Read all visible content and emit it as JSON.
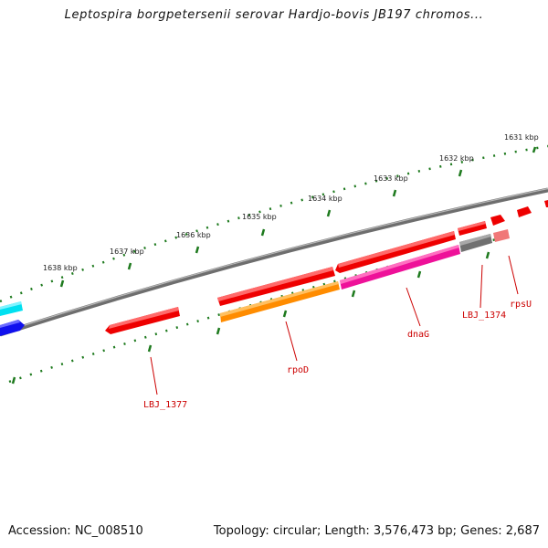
{
  "title": "Leptospira borgpetersenii serovar Hardjo-bovis JB197 chromos...",
  "footer": {
    "accession": "Accession: NC_008510",
    "summary": "Topology: circular; Length: 3,576,473 bp; Genes: 2,687"
  },
  "scale_labels": [
    "1631 kbp",
    "1632 kbp",
    "1633 kbp",
    "1634 kbp",
    "1635 kbp",
    "1636 kbp",
    "1637 kbp",
    "1638 kbp"
  ],
  "gene_labels": [
    "rpsU",
    "LBJ_1374",
    "dnaG",
    "rpoD",
    "LBJ_1377"
  ],
  "colors": {
    "backbone": "#808080",
    "tick": "#1e7a1e",
    "label": "#cc0000",
    "gene_red": "#ee0000",
    "gene_orange": "#ff8c00",
    "gene_magenta": "#ee1199",
    "gene_gray": "#707070",
    "gene_pink": "#f07878",
    "gene_cyan": "#00e0f0",
    "gene_blue": "#1010ee"
  }
}
